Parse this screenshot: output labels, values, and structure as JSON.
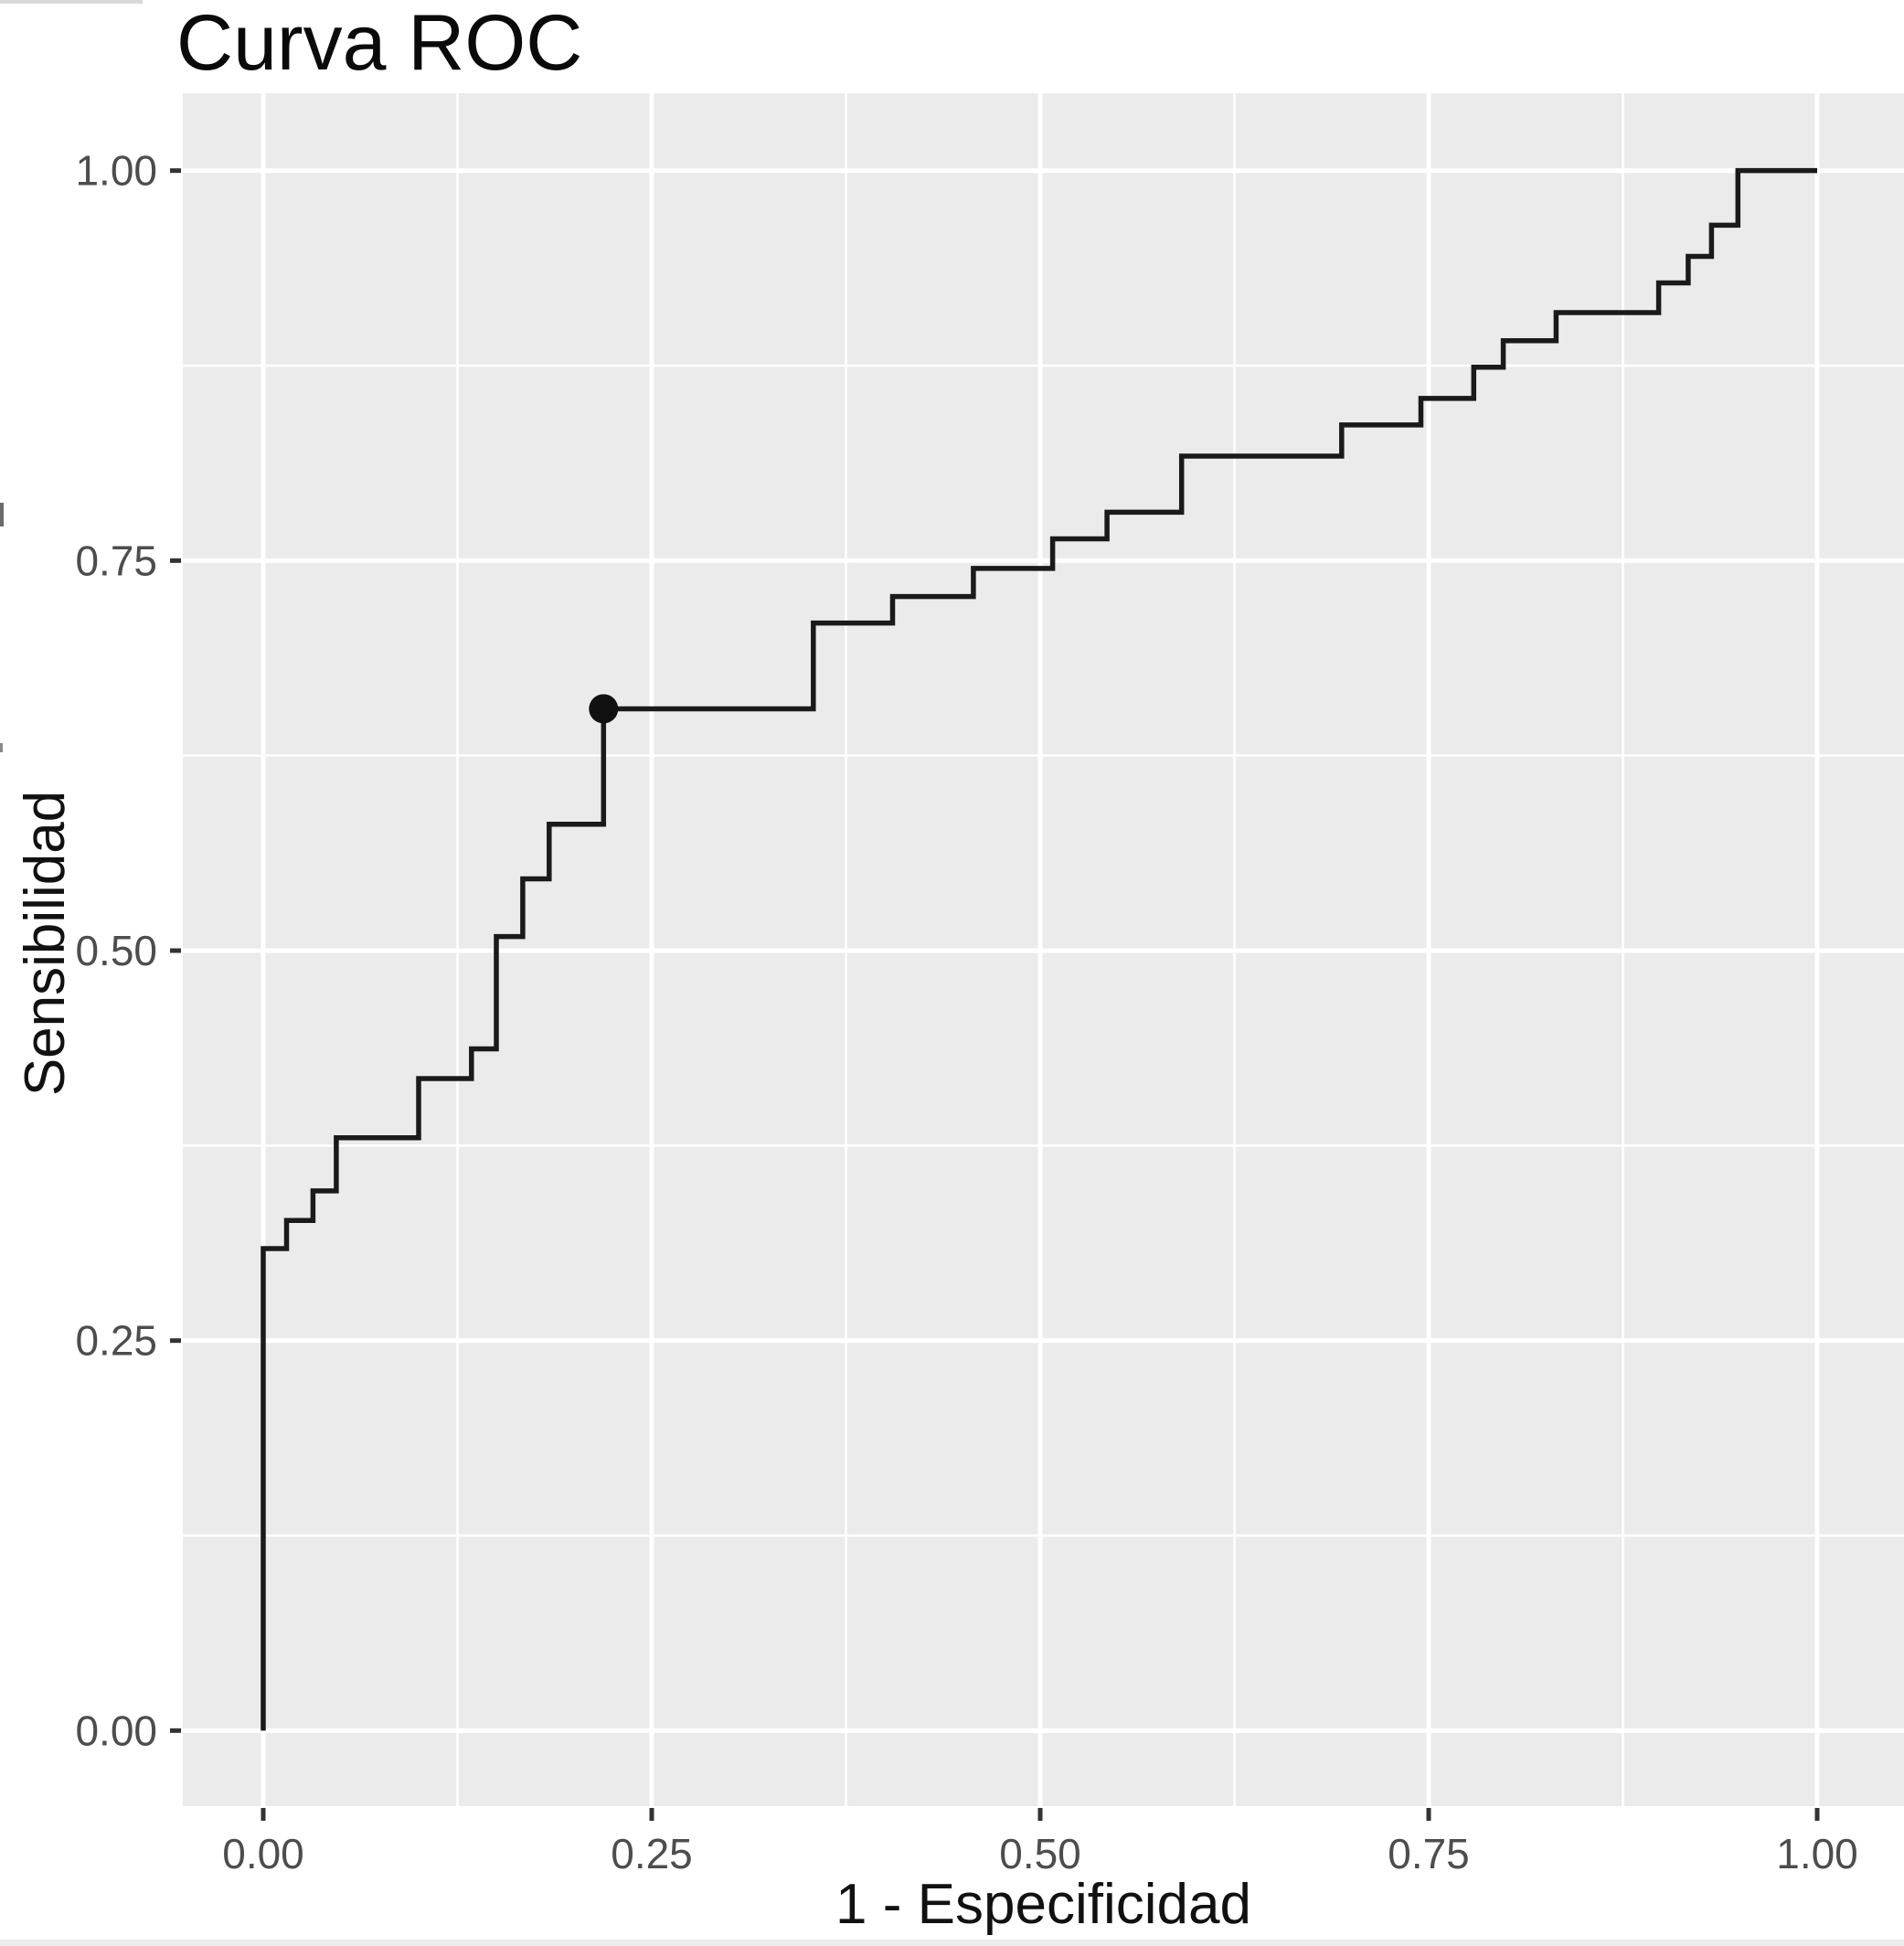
{
  "chart_data": {
    "type": "line",
    "step": true,
    "title": "Curva ROC",
    "xlabel": "1 - Especificidad",
    "ylabel": "Sensibilidad",
    "xlim": [
      0,
      1
    ],
    "ylim": [
      0,
      1
    ],
    "legend": "none",
    "grid": {
      "major": true,
      "minor": true
    },
    "x_ticks": {
      "values": [
        0,
        0.25,
        0.5,
        0.75,
        1
      ],
      "labels": [
        "0.00",
        "0.25",
        "0.50",
        "0.75",
        "1.00"
      ],
      "minor": [
        0.125,
        0.375,
        0.625,
        0.875
      ]
    },
    "y_ticks": {
      "values": [
        0,
        0.25,
        0.5,
        0.75,
        1
      ],
      "labels": [
        "0.00",
        "0.25",
        "0.50",
        "0.75",
        "1.00"
      ],
      "minor": [
        0.125,
        0.375,
        0.625,
        0.875
      ]
    },
    "series": [
      {
        "name": "roc-curve",
        "points": [
          [
            0.0,
            0.0
          ],
          [
            0.0,
            0.309
          ],
          [
            0.015,
            0.309
          ],
          [
            0.015,
            0.327
          ],
          [
            0.032,
            0.327
          ],
          [
            0.032,
            0.346
          ],
          [
            0.047,
            0.346
          ],
          [
            0.047,
            0.38
          ],
          [
            0.1,
            0.38
          ],
          [
            0.1,
            0.418
          ],
          [
            0.134,
            0.418
          ],
          [
            0.134,
            0.437
          ],
          [
            0.15,
            0.437
          ],
          [
            0.15,
            0.509
          ],
          [
            0.167,
            0.509
          ],
          [
            0.167,
            0.546
          ],
          [
            0.184,
            0.546
          ],
          [
            0.184,
            0.581
          ],
          [
            0.219,
            0.581
          ],
          [
            0.219,
            0.655
          ],
          [
            0.354,
            0.655
          ],
          [
            0.354,
            0.71
          ],
          [
            0.405,
            0.71
          ],
          [
            0.405,
            0.727
          ],
          [
            0.457,
            0.727
          ],
          [
            0.457,
            0.745
          ],
          [
            0.508,
            0.745
          ],
          [
            0.508,
            0.764
          ],
          [
            0.543,
            0.764
          ],
          [
            0.543,
            0.781
          ],
          [
            0.591,
            0.781
          ],
          [
            0.591,
            0.817
          ],
          [
            0.694,
            0.817
          ],
          [
            0.694,
            0.837
          ],
          [
            0.745,
            0.837
          ],
          [
            0.745,
            0.854
          ],
          [
            0.779,
            0.854
          ],
          [
            0.779,
            0.874
          ],
          [
            0.798,
            0.874
          ],
          [
            0.798,
            0.891
          ],
          [
            0.832,
            0.891
          ],
          [
            0.832,
            0.909
          ],
          [
            0.898,
            0.909
          ],
          [
            0.898,
            0.928
          ],
          [
            0.917,
            0.928
          ],
          [
            0.917,
            0.945
          ],
          [
            0.932,
            0.945
          ],
          [
            0.932,
            0.965
          ],
          [
            0.949,
            0.965
          ],
          [
            0.949,
            1.0
          ],
          [
            1.0,
            1.0
          ]
        ]
      }
    ],
    "marked_point": {
      "x": 0.219,
      "y": 0.655
    }
  },
  "style": {
    "background": "#ffffff",
    "panel_bg": "#ebebeb",
    "grid_color": "#ffffff",
    "curve_color": "#1a1a1a",
    "point_color": "#111111",
    "tick_label_color": "#4d4d4d",
    "tick_mark_color": "#333333",
    "title_color": "#0a0a0a"
  }
}
